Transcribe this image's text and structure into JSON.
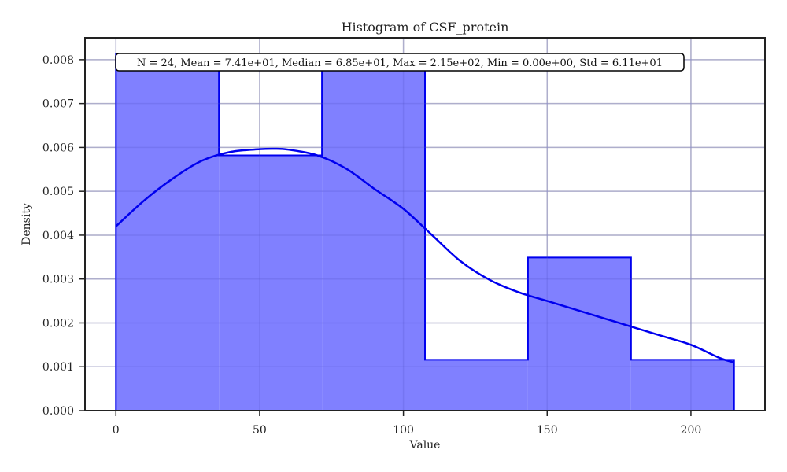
{
  "chart_data": {
    "type": "bar",
    "title": "Histogram of CSF_protein",
    "xlabel": "Value",
    "ylabel": "Density",
    "xlim": [
      -10.75,
      225.75
    ],
    "ylim": [
      0,
      0.0085
    ],
    "x_ticks": [
      0,
      50,
      100,
      150,
      200
    ],
    "x_tick_labels": [
      "0",
      "50",
      "100",
      "150",
      "200"
    ],
    "y_ticks": [
      0,
      0.001,
      0.002,
      0.003,
      0.004,
      0.005,
      0.006,
      0.007,
      0.008
    ],
    "y_tick_labels": [
      "0.000",
      "0.001",
      "0.002",
      "0.003",
      "0.004",
      "0.005",
      "0.006",
      "0.007",
      "0.008"
    ],
    "grid": true,
    "bins": [
      {
        "x0": 0,
        "x1": 35.83,
        "density": 0.00814
      },
      {
        "x0": 35.83,
        "x1": 71.67,
        "density": 0.00582
      },
      {
        "x0": 71.67,
        "x1": 107.5,
        "density": 0.00814
      },
      {
        "x0": 107.5,
        "x1": 143.33,
        "density": 0.00116
      },
      {
        "x0": 143.33,
        "x1": 179.17,
        "density": 0.00349
      },
      {
        "x0": 179.17,
        "x1": 215,
        "density": 0.00116
      }
    ],
    "kde": {
      "x": [
        0,
        10,
        20,
        30,
        40,
        50,
        55,
        60,
        70,
        80,
        90,
        100,
        110,
        120,
        130,
        140,
        150,
        160,
        170,
        180,
        190,
        200,
        210,
        215
      ],
      "y": [
        0.0042,
        0.0048,
        0.0053,
        0.0057,
        0.0059,
        0.00596,
        0.00597,
        0.00595,
        0.00582,
        0.00552,
        0.00505,
        0.0046,
        0.004,
        0.0034,
        0.00298,
        0.0027,
        0.0025,
        0.0023,
        0.0021,
        0.0019,
        0.0017,
        0.0015,
        0.0012,
        0.0011
      ]
    },
    "annotation": "N = 24, Mean = 7.41e+01, Median = 6.85e+01, Max = 2.15e+02, Min = 0.00e+00, Std = 6.11e+01",
    "colors": {
      "bar_fill": "#8080ff",
      "bar_edge": "#0000ee",
      "kde_line": "#0000ee",
      "grid": "#cccccc",
      "axes": "#222222"
    }
  }
}
